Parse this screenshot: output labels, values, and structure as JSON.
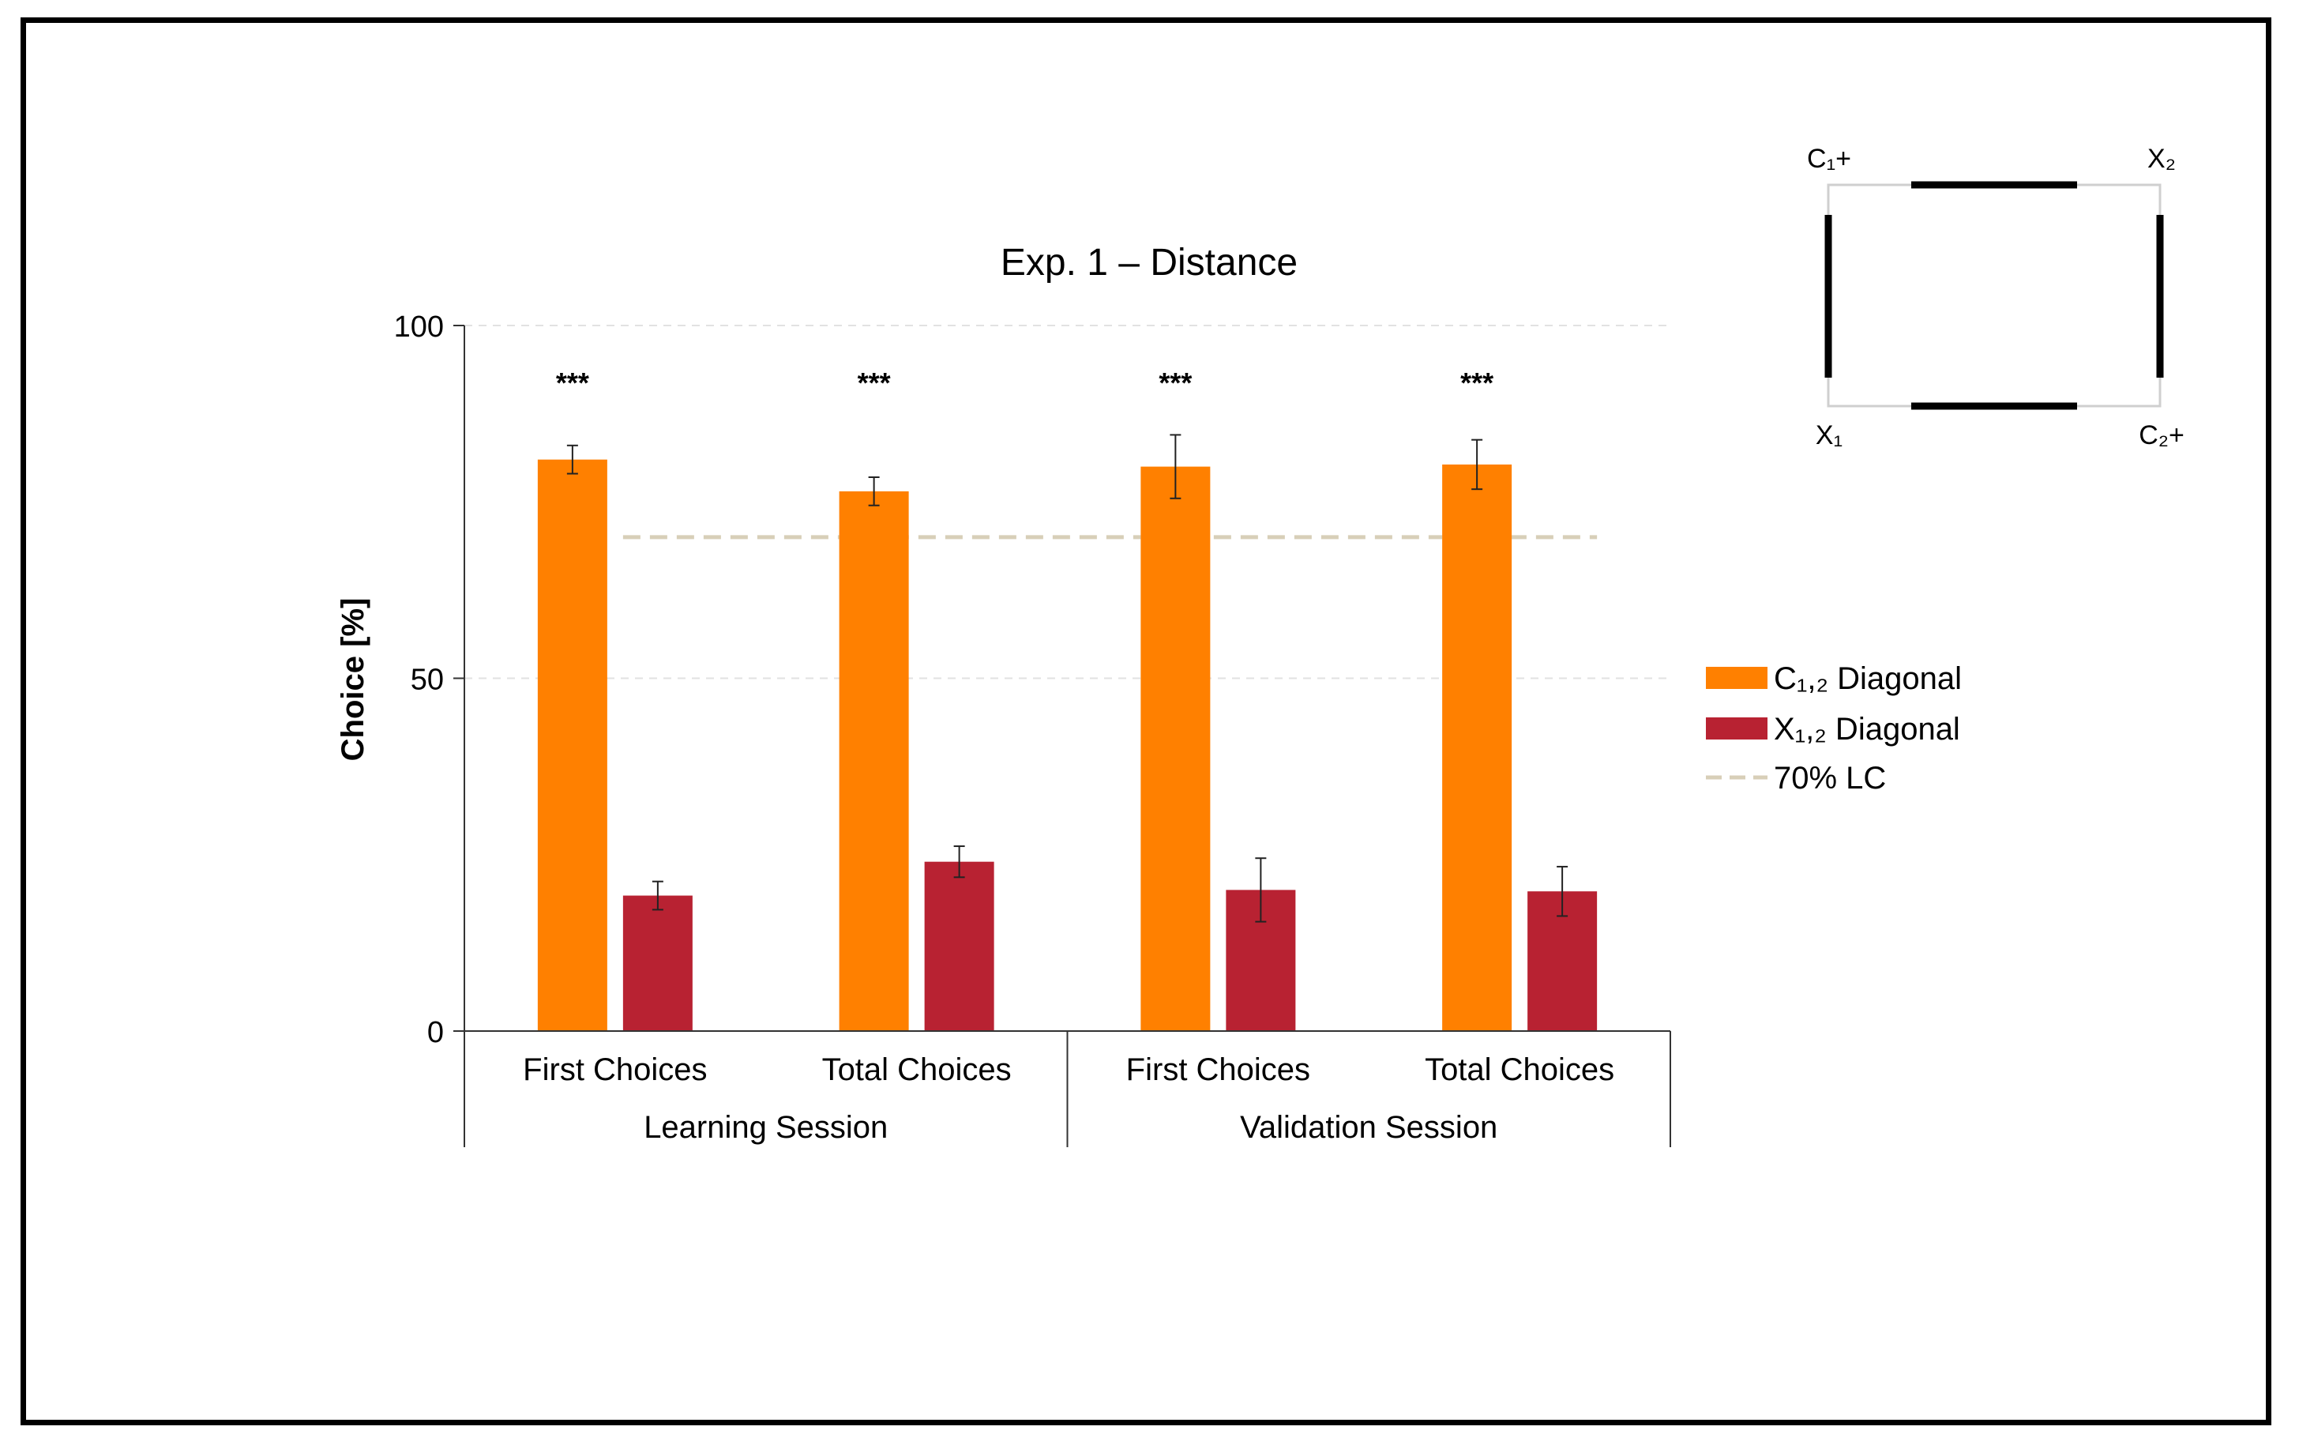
{
  "chart_data": {
    "type": "bar",
    "title": "Exp. 1 – Distance",
    "ylabel": "Choice [%]",
    "xlabel": "",
    "ylim": [
      0,
      100
    ],
    "yticks": [
      0,
      50,
      100
    ],
    "grid": "horizontal-dashed",
    "categories": [
      "First Choices",
      "Total Choices",
      "First Choices",
      "Total Choices"
    ],
    "groups": [
      {
        "label": "Learning Session",
        "categories": [
          0,
          1
        ]
      },
      {
        "label": "Validation Session",
        "categories": [
          2,
          3
        ]
      }
    ],
    "series": [
      {
        "name": "C₁,₂ Diagonal",
        "color": "#FF8000",
        "values": [
          81,
          76.5,
          80,
          80.3
        ],
        "errors": [
          2,
          2,
          4.5,
          3.5
        ]
      },
      {
        "name": "X₁,₂ Diagonal",
        "color": "#B82232",
        "values": [
          19.2,
          24,
          20,
          19.8
        ],
        "errors": [
          2,
          2.2,
          4.5,
          3.5
        ]
      }
    ],
    "significance": [
      "***",
      "***",
      "***",
      "***"
    ],
    "reference_line": {
      "name": "70% LC",
      "value": 70,
      "color": "#D8CFB8"
    },
    "legend_position": "right",
    "inset": {
      "corners": {
        "top_left": "C₁+",
        "top_right": "X₂",
        "bottom_left": "X₁",
        "bottom_right": "C₂+"
      }
    }
  }
}
